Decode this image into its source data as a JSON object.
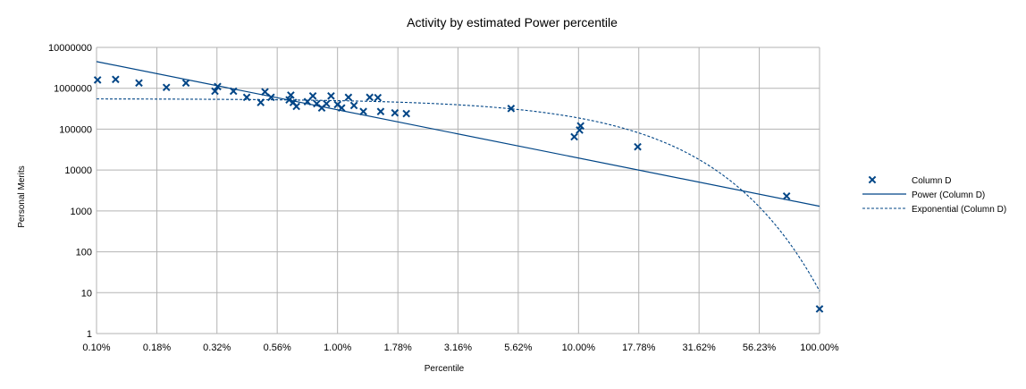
{
  "chart_data": {
    "type": "scatter",
    "title": "Activity by estimated Power percentile",
    "xlabel": "Percentile",
    "ylabel": "Personal Merits",
    "x_scale": "log",
    "y_scale": "log",
    "xlim": [
      0.1,
      100
    ],
    "ylim": [
      1,
      10000000
    ],
    "x_ticks": [
      0.1,
      0.178,
      0.316,
      0.562,
      1.0,
      1.78,
      3.16,
      5.62,
      10.0,
      17.78,
      31.62,
      56.23,
      100.0
    ],
    "x_tick_labels": [
      "0.10%",
      "0.18%",
      "0.32%",
      "0.56%",
      "1.00%",
      "1.78%",
      "3.16%",
      "5.62%",
      "10.00%",
      "17.78%",
      "31.62%",
      "56.23%",
      "100.00%"
    ],
    "y_ticks": [
      1,
      10,
      100,
      1000,
      10000,
      100000,
      1000000,
      10000000
    ],
    "y_tick_labels": [
      "1",
      "10",
      "100",
      "1000",
      "10000",
      "100000",
      "1000000",
      "10000000"
    ],
    "grid": true,
    "legend_position": "right",
    "colors": {
      "series": "#004586",
      "grid": "#b3b3b3",
      "axis": "#b3b3b3"
    },
    "series": [
      {
        "name": "Column D",
        "marker": "x",
        "points": [
          [
            0.101,
            1600000
          ],
          [
            0.12,
            1650000
          ],
          [
            0.15,
            1350000
          ],
          [
            0.195,
            1050000
          ],
          [
            0.235,
            1350000
          ],
          [
            0.31,
            850000
          ],
          [
            0.318,
            1100000
          ],
          [
            0.37,
            850000
          ],
          [
            0.42,
            600000
          ],
          [
            0.48,
            450000
          ],
          [
            0.5,
            820000
          ],
          [
            0.53,
            600000
          ],
          [
            0.63,
            520000
          ],
          [
            0.64,
            680000
          ],
          [
            0.655,
            450000
          ],
          [
            0.675,
            360000
          ],
          [
            0.75,
            470000
          ],
          [
            0.79,
            650000
          ],
          [
            0.82,
            420000
          ],
          [
            0.86,
            330000
          ],
          [
            0.9,
            420000
          ],
          [
            0.94,
            650000
          ],
          [
            1.0,
            400000
          ],
          [
            1.04,
            330000
          ],
          [
            1.11,
            600000
          ],
          [
            1.17,
            380000
          ],
          [
            1.28,
            270000
          ],
          [
            1.36,
            600000
          ],
          [
            1.47,
            590000
          ],
          [
            1.51,
            270000
          ],
          [
            1.73,
            250000
          ],
          [
            1.93,
            240000
          ],
          [
            5.25,
            320000
          ],
          [
            9.6,
            65000
          ],
          [
            10.1,
            95000
          ],
          [
            10.2,
            120000
          ],
          [
            17.6,
            37000
          ],
          [
            73.0,
            2300
          ],
          [
            100.0,
            4
          ]
        ]
      },
      {
        "name": "Power (Column D)",
        "type": "trendline-power",
        "from": [
          0.1,
          4500000
        ],
        "to": [
          100,
          1300
        ]
      },
      {
        "name": "Exponential (Column D)",
        "type": "trendline-exponential",
        "intercept": 555000,
        "rate_per_percent": -0.1083
      }
    ]
  }
}
